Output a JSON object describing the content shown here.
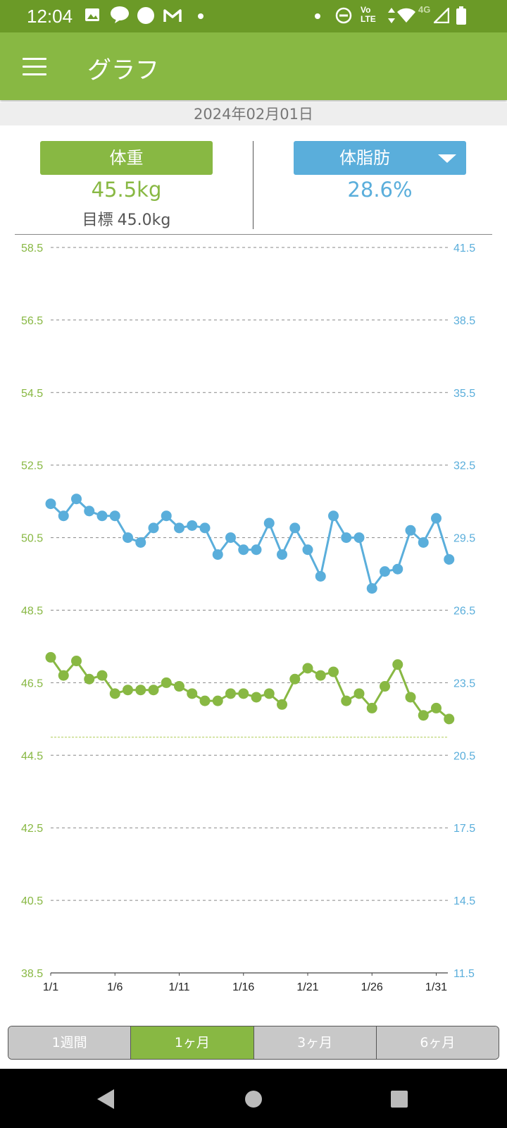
{
  "status_bar": {
    "time": "12:04",
    "network_lte": "Vo LTE",
    "network_type": "4G",
    "left_icons": [
      "image-icon",
      "line-app-icon",
      "circle-notification-icon",
      "gmail-icon",
      "dot-icon"
    ],
    "right_icons": [
      "dot-icon",
      "do-not-disturb-icon",
      "volte-icon",
      "data-arrows-icon",
      "wifi-icon",
      "signal-icon",
      "battery-icon"
    ]
  },
  "app_bar": {
    "title": "グラフ",
    "menu_icon": "hamburger-menu-icon"
  },
  "date_header": "2024年02月01日",
  "weight": {
    "label": "体重",
    "value": "45.5kg",
    "goal_label": "目標",
    "goal_value": "45.0kg"
  },
  "body_fat": {
    "label": "体脂肪",
    "value": "28.6%",
    "dropdown_icon": "caret-down-icon"
  },
  "colors": {
    "green": "#88b843",
    "blue": "#5aaedb",
    "dark_green": "#6b9a27",
    "goal_line": "#c9dc8a"
  },
  "chart_data": {
    "type": "line",
    "x": [
      "1/1",
      "1/2",
      "1/3",
      "1/4",
      "1/5",
      "1/6",
      "1/7",
      "1/8",
      "1/9",
      "1/10",
      "1/11",
      "1/12",
      "1/13",
      "1/14",
      "1/15",
      "1/16",
      "1/17",
      "1/18",
      "1/19",
      "1/20",
      "1/21",
      "1/22",
      "1/23",
      "1/24",
      "1/25",
      "1/26",
      "1/27",
      "1/28",
      "1/29",
      "1/30",
      "1/31",
      "2/1"
    ],
    "x_tick_labels": [
      "1/1",
      "1/6",
      "1/11",
      "1/16",
      "1/21",
      "1/26",
      "1/31"
    ],
    "y_left": {
      "ticks": [
        "58.5",
        "56.5",
        "54.5",
        "52.5",
        "50.5",
        "48.5",
        "46.5",
        "44.5",
        "42.5",
        "40.5",
        "38.5"
      ],
      "ylim": [
        38.5,
        58.5
      ]
    },
    "y_right": {
      "ticks": [
        "41.5",
        "38.5",
        "35.5",
        "32.5",
        "29.5",
        "26.5",
        "23.5",
        "20.5",
        "17.5",
        "14.5",
        "11.5"
      ],
      "ylim": [
        11.5,
        41.5
      ]
    },
    "grid": true,
    "goal_line": 45.0,
    "series": [
      {
        "axis": "left",
        "color": "#88b843",
        "values": [
          47.2,
          46.7,
          47.1,
          46.6,
          46.7,
          46.2,
          46.3,
          46.3,
          46.3,
          46.5,
          46.4,
          46.2,
          46.0,
          46.0,
          46.2,
          46.2,
          46.1,
          46.2,
          45.9,
          46.6,
          46.9,
          46.7,
          46.8,
          46.0,
          46.2,
          45.8,
          46.4,
          47.0,
          46.1,
          45.6,
          45.8,
          45.5
        ]
      },
      {
        "axis": "right",
        "color": "#5aaedb",
        "values": [
          30.9,
          30.4,
          31.1,
          30.6,
          30.4,
          30.4,
          29.5,
          29.3,
          29.9,
          30.4,
          29.9,
          30.0,
          29.9,
          28.8,
          29.5,
          29.0,
          29.0,
          30.1,
          28.8,
          29.9,
          29.0,
          27.9,
          30.4,
          29.5,
          29.5,
          27.4,
          28.1,
          28.2,
          29.8,
          29.3,
          30.3,
          28.6
        ]
      }
    ]
  },
  "period_tabs": [
    {
      "label": "1週間",
      "active": false
    },
    {
      "label": "1ヶ月",
      "active": true
    },
    {
      "label": "3ヶ月",
      "active": false
    },
    {
      "label": "6ヶ月",
      "active": false
    }
  ],
  "nav_bar": {
    "back": "back-triangle-icon",
    "home": "home-circle-icon",
    "recents": "recents-square-icon"
  }
}
